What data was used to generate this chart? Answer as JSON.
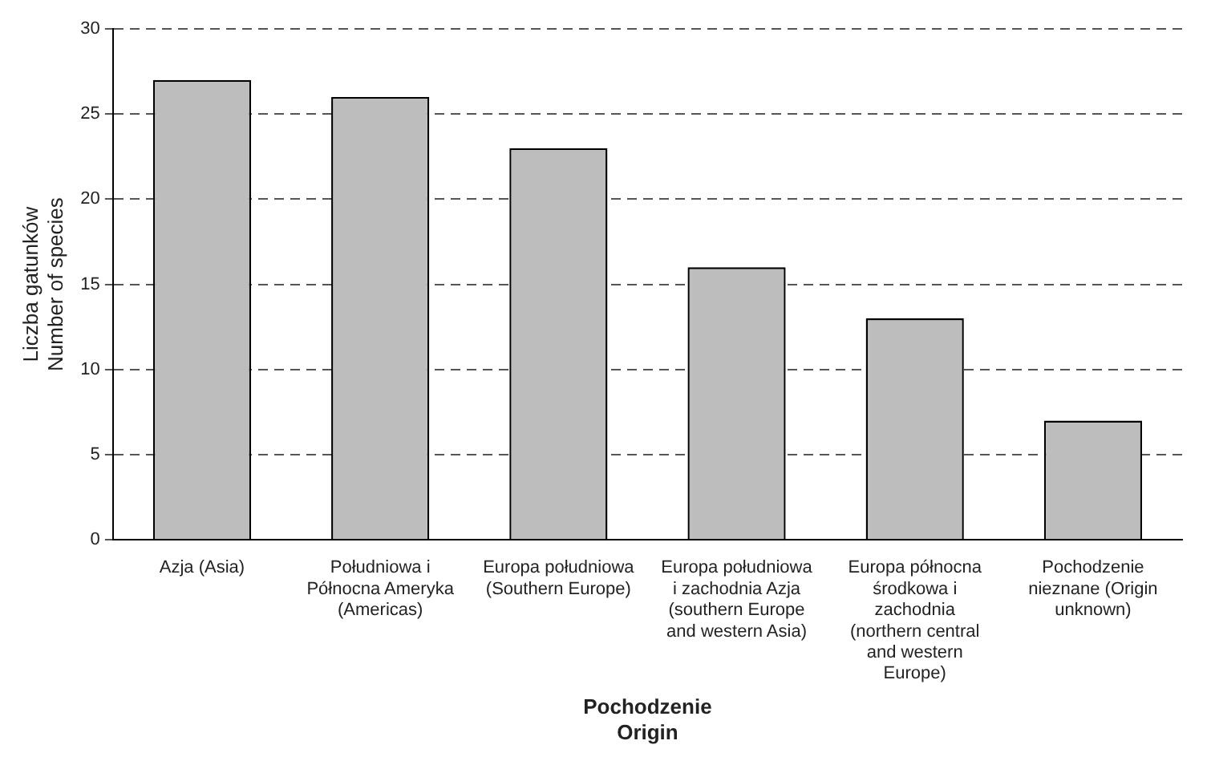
{
  "chart_data": {
    "type": "bar",
    "xlabel": "Pochodzenie\nOrigin",
    "ylabel": "Liczba gatunków\nNumber of species",
    "categories": [
      "Azja (Asia)",
      "Południowa i Północna Ameryka (Americas)",
      "Europa południowa (Southern Europe)",
      "Europa południowa i zachodnia Azja (southern Europe and western Asia)",
      "Europa północna środkowa i zachodnia (northern central and western Europe)",
      "Pochodzenie nieznane (Origin unknown)"
    ],
    "values": [
      27,
      26,
      23,
      16,
      13,
      7
    ],
    "color": "#bdbdbd",
    "ylim": [
      0,
      30
    ],
    "yticks": [
      0,
      5,
      10,
      15,
      20,
      25,
      30
    ],
    "grid": "y",
    "legend": false
  }
}
